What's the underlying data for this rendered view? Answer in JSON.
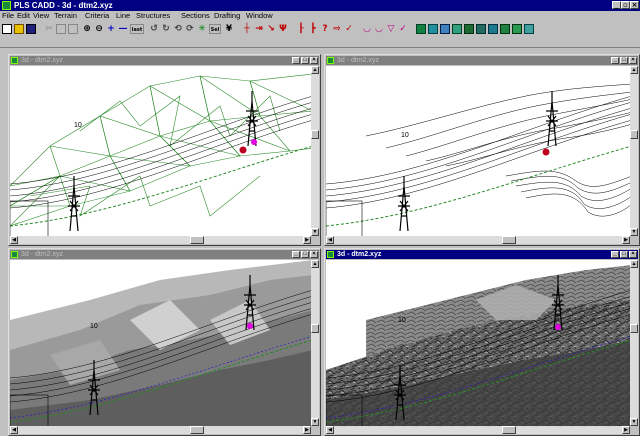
{
  "app": {
    "title": "PLS CADD - 3d - dtm2.xyz"
  },
  "menu": [
    "File",
    "Edit",
    "View",
    "Terrain",
    "Criteria",
    "Line",
    "Structures",
    "Sections",
    "Drafting",
    "Window"
  ],
  "toolbar": {
    "zoom_in": "zoom-in-icon",
    "zoom_out": "zoom-out-icon",
    "plus": "+",
    "minus": "—",
    "last_label": "last",
    "sel_label": "Sel"
  },
  "windows": [
    {
      "title": "3d - dtm2.xyz",
      "active": false,
      "mode": "wireframe",
      "point_label": "10"
    },
    {
      "title": "3d - dtm2.xyz",
      "active": false,
      "mode": "contour",
      "point_label": "10"
    },
    {
      "title": "3d - dtm2.xyz",
      "active": false,
      "mode": "shaded",
      "point_label": "10"
    },
    {
      "title": "3d - dtm2.xyz",
      "active": true,
      "mode": "textured",
      "point_label": "10"
    }
  ],
  "colors": {
    "title_active": "#000080",
    "title_inactive": "#808080",
    "terrain_wire": "#2a8a2a",
    "face": "#c0c0c0"
  }
}
